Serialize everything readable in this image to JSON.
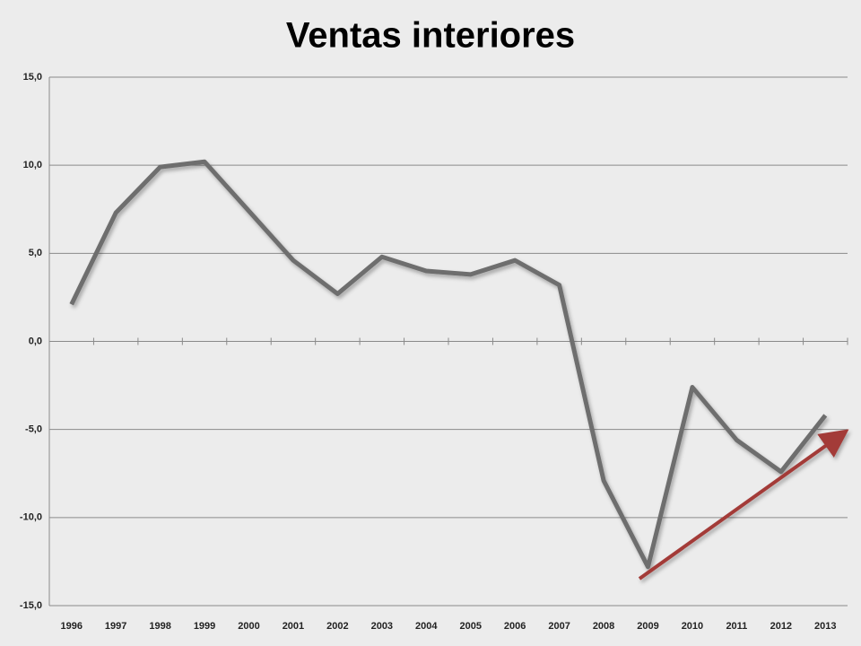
{
  "chart_data": {
    "type": "line",
    "title": "Ventas interiores",
    "categories": [
      "1996",
      "1997",
      "1998",
      "1999",
      "2000",
      "2001",
      "2002",
      "2003",
      "2004",
      "2005",
      "2006",
      "2007",
      "2008",
      "2009",
      "2010",
      "2011",
      "2012",
      "2013"
    ],
    "series": [
      {
        "name": "Ventas interiores",
        "color": "#6e6e6e",
        "values": [
          2.1,
          7.3,
          9.9,
          10.2,
          7.4,
          4.6,
          2.7,
          4.8,
          4.0,
          3.8,
          4.6,
          3.2,
          -7.9,
          -12.8,
          -2.6,
          -5.6,
          -7.4,
          -4.2
        ]
      }
    ],
    "ylim": [
      -15,
      15
    ],
    "yticks": [
      {
        "value": -15,
        "label": "-15,0"
      },
      {
        "value": -10,
        "label": "-10,0"
      },
      {
        "value": -5,
        "label": "-5,0"
      },
      {
        "value": 0,
        "label": "0,0"
      },
      {
        "value": 5,
        "label": "5,0"
      },
      {
        "value": 10,
        "label": "10,0"
      },
      {
        "value": 15,
        "label": "15,0"
      }
    ],
    "grid": true
  }
}
